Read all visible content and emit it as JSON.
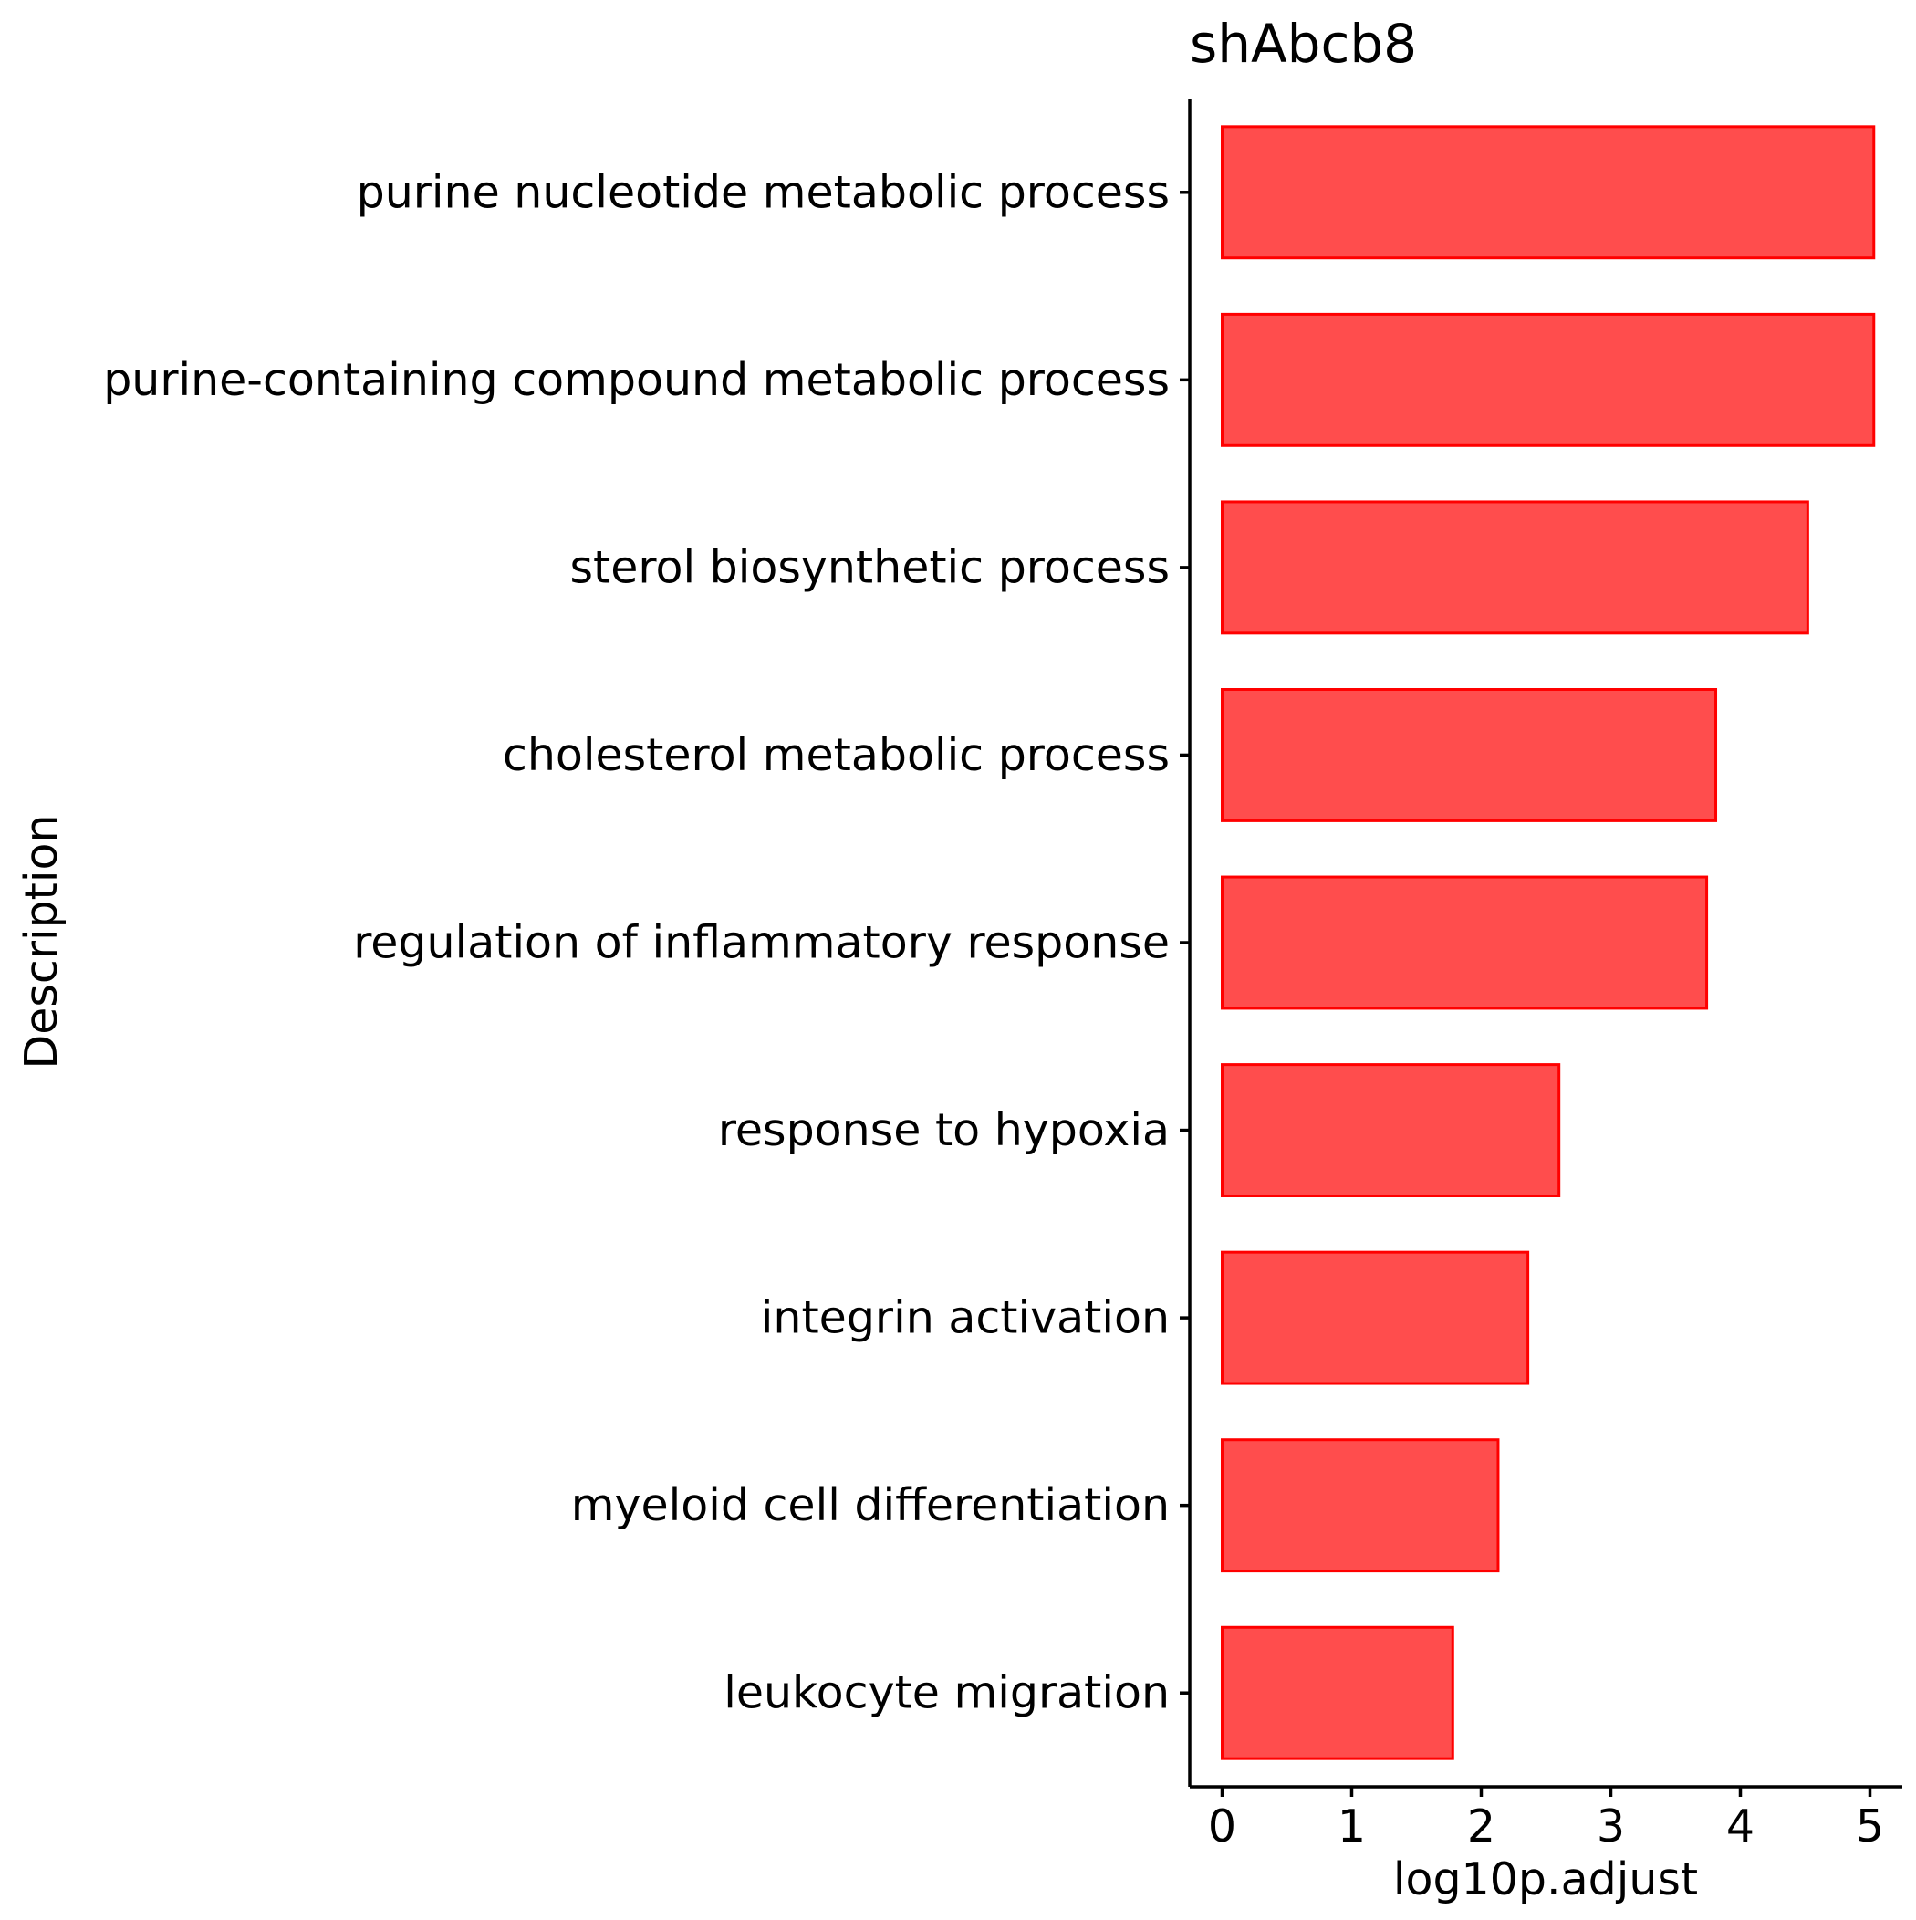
{
  "chart_data": {
    "type": "bar",
    "orientation": "horizontal",
    "title": "shAbcb8",
    "xlabel": "log10p.adjust",
    "ylabel": "Description",
    "categories": [
      "purine nucleotide metabolic process",
      "purine-containing compound metabolic process",
      "sterol biosynthetic process",
      "cholesterol metabolic process",
      "regulation of inflammatory response",
      "response to hypoxia",
      "integrin activation",
      "myeloid cell differentiation",
      "leukocyte migration"
    ],
    "values": [
      5.03,
      5.03,
      4.52,
      3.81,
      3.74,
      2.6,
      2.36,
      2.13,
      1.78
    ],
    "xlim": [
      -0.25,
      5.25
    ],
    "xticks": [
      0,
      1,
      2,
      3,
      4,
      5
    ],
    "grid": false,
    "legend": "none",
    "bar_fill": "#FF4D4D",
    "bar_stroke": "#FF0000"
  }
}
